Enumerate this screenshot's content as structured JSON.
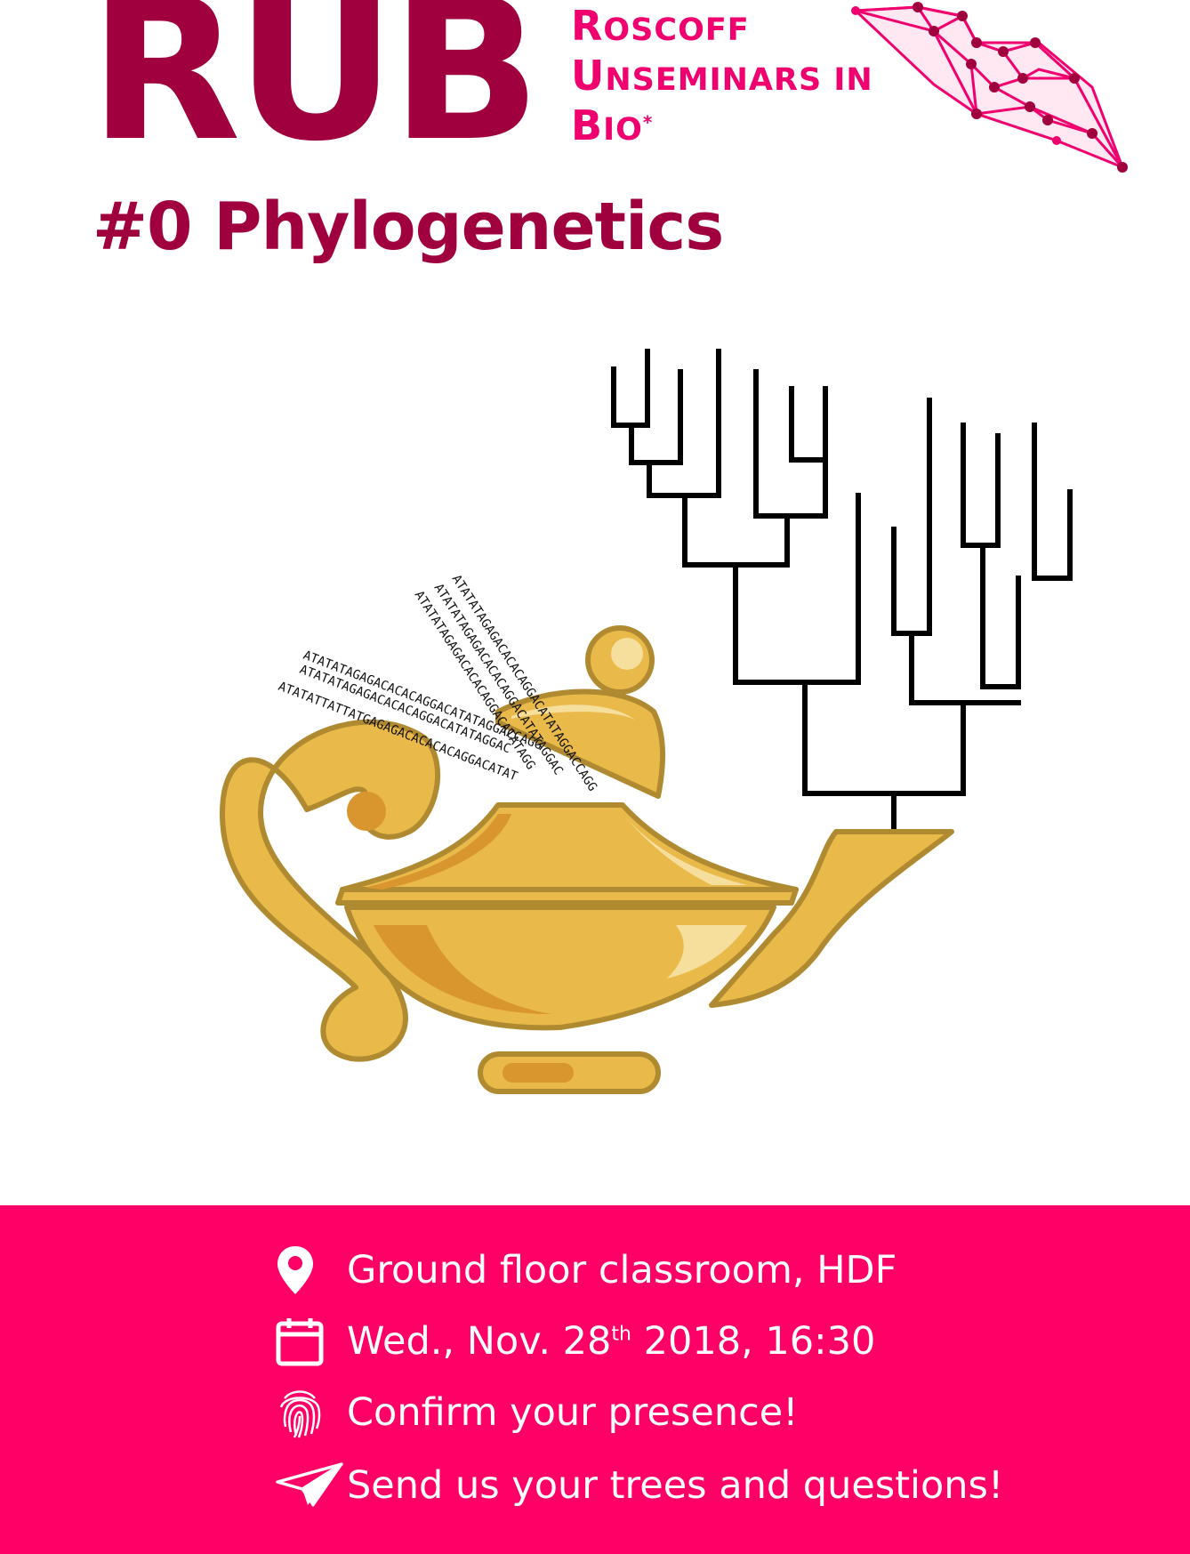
{
  "header": {
    "logo": "RUB",
    "subtitle_lines": [
      {
        "initial": "R",
        "rest": "OSCOFF"
      },
      {
        "initial": "U",
        "rest": "NSEMINARS IN"
      },
      {
        "initial": "B",
        "rest": "IO"
      }
    ],
    "subtitle_mark": "*",
    "session_title": "#0 Phylogenetics"
  },
  "illustration": {
    "sequences": [
      "ATATATAGAGACACACAGGACATATAGGACCAGG",
      "ATATATAGAGACACACAGGACATATAGGAC",
      "ATATATTATTATGAGAGACACACACAGGACATAT",
      "ATATATAGAGACACACAGGACATATAGGACCAGG",
      "ATATATAGAGACACACAGGACATATAGGAC",
      "ATATATAGAGACACACAGGACATATAGG"
    ]
  },
  "footer": {
    "location": "Ground floor classroom, HDF",
    "date_prefix": "Wed., Nov. 28",
    "date_sup": "th",
    "date_suffix": " 2018, 16:30",
    "confirm": "Confirm your presence!",
    "send": "Send us your trees and questions!"
  },
  "colors": {
    "brand_dark": "#a0003e",
    "brand_pink": "#f0006e",
    "footer_bg": "#ff0066",
    "lamp_gold": "#e9b94a",
    "lamp_outline": "#b08a30"
  }
}
